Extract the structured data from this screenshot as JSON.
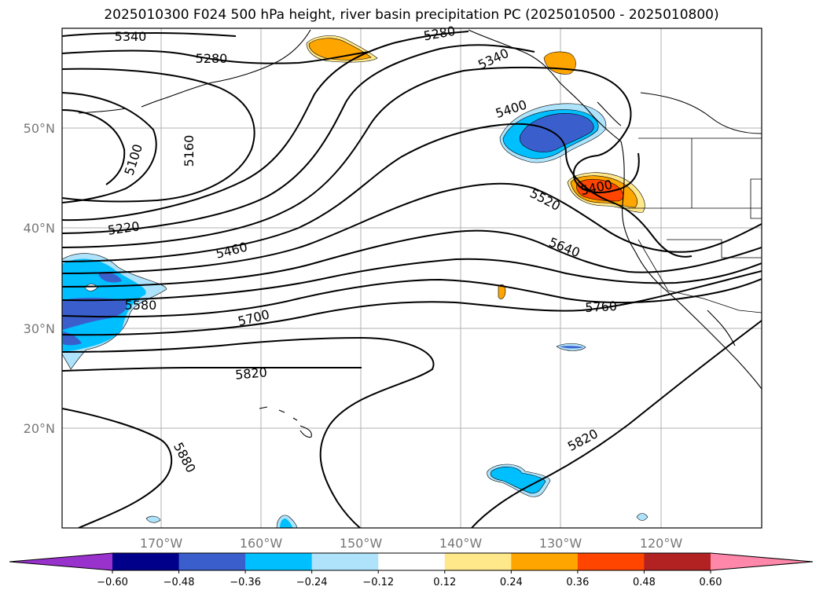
{
  "title": "2025010300 F024 500 hPa height, river basin precipitation PC (2025010500 - 2025010800)",
  "map": {
    "lon_ticks": [
      "170°W",
      "160°W",
      "150°W",
      "140°W",
      "130°W",
      "120°W"
    ],
    "lat_ticks": [
      "50°N",
      "40°N",
      "30°N",
      "20°N"
    ],
    "contour_labels": [
      "5340",
      "5280",
      "5280",
      "5340",
      "5400",
      "5400",
      "5100",
      "5160",
      "5220",
      "5460",
      "5520",
      "5640",
      "5580",
      "5700",
      "5760",
      "5820",
      "5820",
      "5880"
    ]
  },
  "colorbar": {
    "colors": [
      "#9932cc",
      "#00008b",
      "#3a5fcd",
      "#00bfff",
      "#aee3fb",
      "#ffffff",
      "#ffe88a",
      "#ffa500",
      "#ff4500",
      "#b22222",
      "#ff88aa"
    ],
    "labels": [
      "−0.60",
      "−0.48",
      "−0.36",
      "−0.24",
      "−0.12",
      "0.12",
      "0.24",
      "0.36",
      "0.48",
      "0.60"
    ]
  },
  "colors": {
    "grid": "#b0b0b0",
    "contour": "#000000",
    "tick_label": "#777777"
  }
}
